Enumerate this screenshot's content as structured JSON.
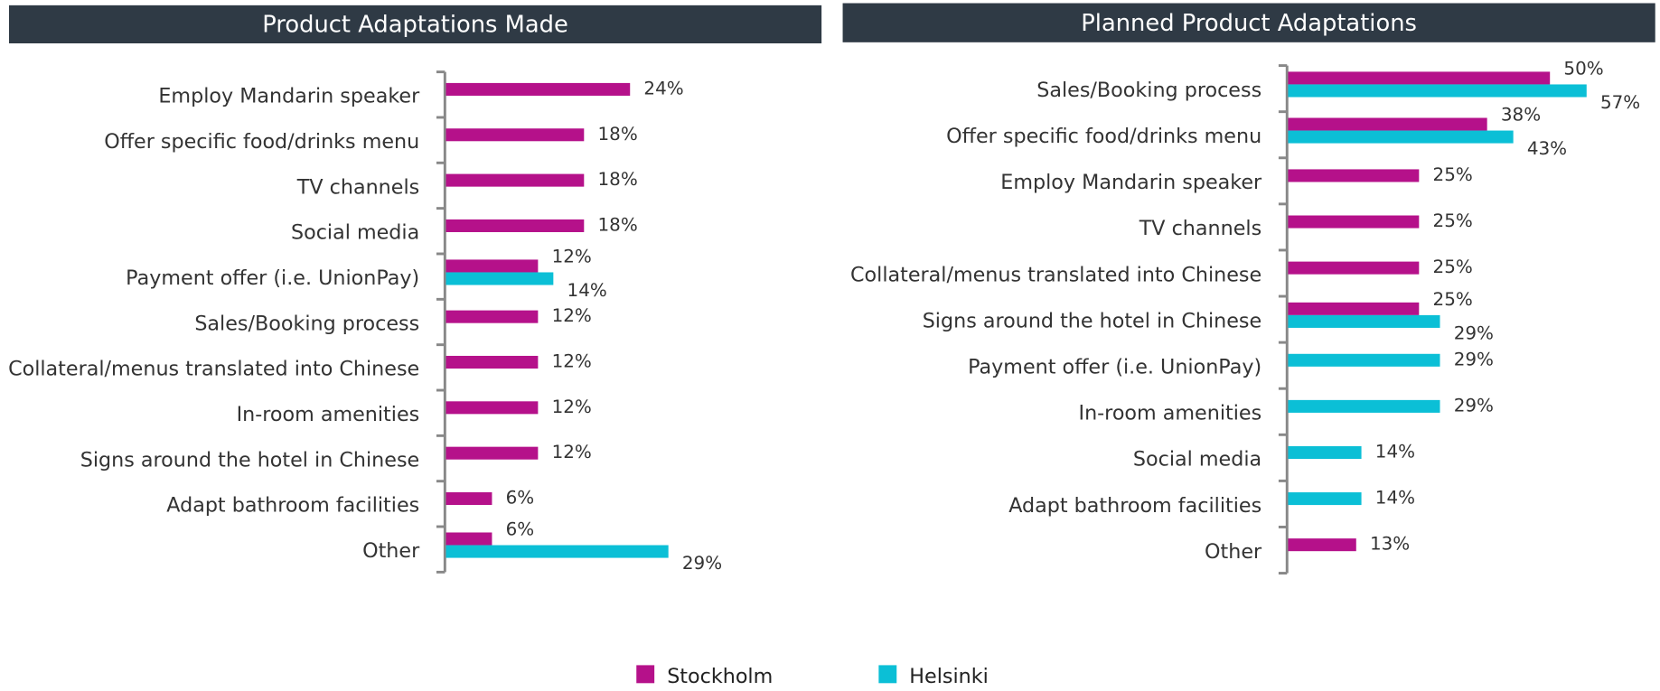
{
  "chart_data": [
    {
      "type": "bar",
      "orientation": "horizontal",
      "title": "Product Adaptations Made",
      "categories": [
        "Employ Mandarin speaker",
        "Offer specific food/drinks menu",
        "TV channels",
        "Social media",
        "Payment offer (i.e. UnionPay)",
        "Sales/Booking process",
        "Collateral/menus translated into Chinese",
        "In-room amenities",
        "Signs around the hotel in Chinese",
        "Adapt bathroom facilities",
        "Other"
      ],
      "series": [
        {
          "name": "Stockholm",
          "color": "#b5118a",
          "values": [
            24,
            18,
            18,
            18,
            12,
            12,
            12,
            12,
            12,
            6,
            6
          ],
          "value_labels": [
            "24%",
            "18%",
            "18%",
            "18%",
            "12%",
            "12%",
            "12%",
            "12%",
            "12%",
            "6%",
            "6%"
          ]
        },
        {
          "name": "Helsinki",
          "color": "#0bbfd6",
          "values": [
            null,
            null,
            null,
            null,
            14,
            null,
            null,
            null,
            null,
            null,
            29
          ],
          "value_labels": [
            null,
            null,
            null,
            null,
            "14%",
            null,
            null,
            null,
            null,
            null,
            "29%"
          ]
        }
      ]
    },
    {
      "type": "bar",
      "orientation": "horizontal",
      "title": "Planned Product Adaptations",
      "categories": [
        "Sales/Booking process",
        "Offer specific food/drinks menu",
        "Employ Mandarin speaker",
        "TV channels",
        "Collateral/menus translated into Chinese",
        "Signs around the hotel in Chinese",
        "Payment offer (i.e. UnionPay)",
        "In-room amenities",
        "Social media",
        "Adapt bathroom facilities",
        "Other"
      ],
      "series": [
        {
          "name": "Stockholm",
          "color": "#b5118a",
          "values": [
            50,
            38,
            25,
            25,
            25,
            25,
            null,
            null,
            null,
            null,
            13
          ],
          "value_labels": [
            "50%",
            "38%",
            "25%",
            "25%",
            "25%",
            "25%",
            null,
            null,
            null,
            null,
            "13%"
          ]
        },
        {
          "name": "Helsinki",
          "color": "#0bbfd6",
          "values": [
            57,
            43,
            null,
            null,
            null,
            29,
            29,
            29,
            14,
            14,
            null
          ],
          "value_labels": [
            "57%",
            "43%",
            null,
            null,
            null,
            "29%",
            "29%",
            "29%",
            "14%",
            "14%",
            null
          ]
        }
      ]
    }
  ]
}
